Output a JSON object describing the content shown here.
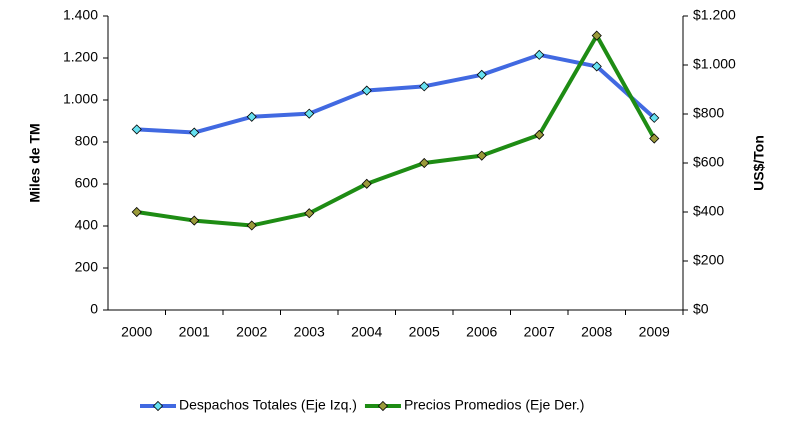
{
  "chart_data": {
    "type": "line",
    "categories": [
      "2000",
      "2001",
      "2002",
      "2003",
      "2004",
      "2005",
      "2006",
      "2007",
      "2008",
      "2009"
    ],
    "series": [
      {
        "name": "Despachos Totales (Eje Izq.)",
        "color": "#4169e1",
        "marker_color": "#66e0f0",
        "values": [
          860,
          845,
          920,
          935,
          1045,
          1065,
          1120,
          1215,
          1160,
          915
        ]
      },
      {
        "name": "Precios Promedios (Eje Der.)",
        "color": "#1e8c14",
        "marker_color": "#9a9a3a",
        "axis": "y2",
        "values": [
          400,
          365,
          345,
          395,
          515,
          600,
          630,
          715,
          1120,
          700
        ]
      }
    ],
    "ylabel": "Miles de TM",
    "y2label": "US$/Ton",
    "ylim": [
      0,
      1400
    ],
    "yticks": [
      0,
      200,
      400,
      600,
      800,
      {
        "value": 1000,
        "label": "1.000"
      },
      {
        "value": 1200,
        "label": "1.200"
      },
      {
        "value": 1400,
        "label": "1.400"
      }
    ],
    "y2lim": [
      0,
      1200
    ],
    "y2ticks": [
      {
        "value": 0,
        "label": "$0"
      },
      {
        "value": 200,
        "label": "$200"
      },
      {
        "value": 400,
        "label": "$400"
      },
      {
        "value": 600,
        "label": "$600"
      },
      {
        "value": 800,
        "label": "$800"
      },
      {
        "value": 1000,
        "label": "$1.000"
      },
      {
        "value": 1200,
        "label": "$1.200"
      }
    ],
    "grid": false,
    "legend": "bottom"
  }
}
